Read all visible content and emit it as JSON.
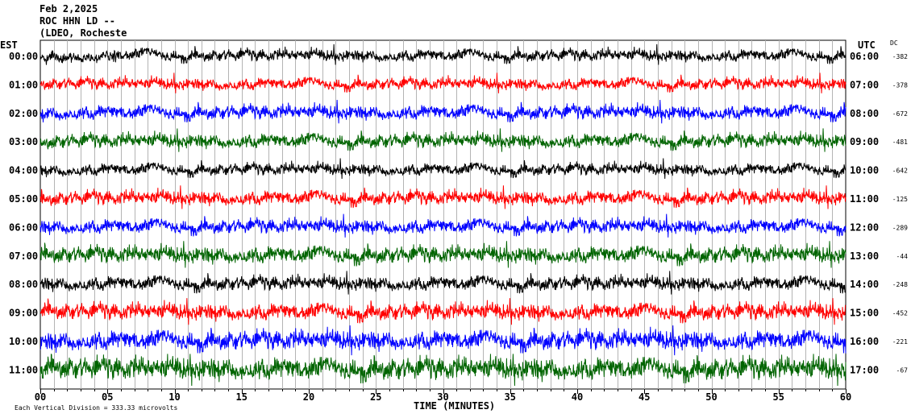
{
  "header": {
    "date": "Feb 2,2025",
    "station": "ROC HHN LD --",
    "network": "(LDEO, Rocheste",
    "left_zone": "EST",
    "right_zone": "UTC",
    "dc_label": "DC"
  },
  "footer": {
    "scale_note": "Each Vertical Division =  333.33 microvolts",
    "xlabel": "TIME (MINUTES)"
  },
  "chart_data": {
    "type": "line",
    "title": "",
    "xlabel": "TIME (MINUTES)",
    "ylabel": "",
    "xlim": [
      0,
      60
    ],
    "x_ticks": [
      "00",
      "05",
      "10",
      "15",
      "20",
      "25",
      "30",
      "35",
      "40",
      "45",
      "50",
      "55",
      "60"
    ],
    "grid": true,
    "trace_colors": [
      "#000000",
      "#ff0000",
      "#0000ff",
      "#006400"
    ],
    "rows": [
      {
        "est": "00:00",
        "utc": "06:00",
        "dc": "-382",
        "color": "#000000",
        "amplitude": 1.0
      },
      {
        "est": "01:00",
        "utc": "07:00",
        "dc": "-378",
        "color": "#ff0000",
        "amplitude": 1.0
      },
      {
        "est": "02:00",
        "utc": "08:00",
        "dc": "-672",
        "color": "#0000ff",
        "amplitude": 1.1
      },
      {
        "est": "03:00",
        "utc": "09:00",
        "dc": "-481",
        "color": "#006400",
        "amplitude": 1.1
      },
      {
        "est": "04:00",
        "utc": "10:00",
        "dc": "-642",
        "color": "#000000",
        "amplitude": 1.0
      },
      {
        "est": "05:00",
        "utc": "11:00",
        "dc": "-125",
        "color": "#ff0000",
        "amplitude": 1.1
      },
      {
        "est": "06:00",
        "utc": "12:00",
        "dc": "-289",
        "color": "#0000ff",
        "amplitude": 1.1
      },
      {
        "est": "07:00",
        "utc": "13:00",
        "dc": "-44",
        "color": "#006400",
        "amplitude": 1.2
      },
      {
        "est": "08:00",
        "utc": "14:00",
        "dc": "-248",
        "color": "#000000",
        "amplitude": 1.1
      },
      {
        "est": "09:00",
        "utc": "15:00",
        "dc": "-452",
        "color": "#ff0000",
        "amplitude": 1.2
      },
      {
        "est": "10:00",
        "utc": "16:00",
        "dc": "-221",
        "color": "#0000ff",
        "amplitude": 1.3
      },
      {
        "est": "11:00",
        "utc": "17:00",
        "dc": "-67",
        "color": "#006400",
        "amplitude": 1.4
      }
    ]
  }
}
